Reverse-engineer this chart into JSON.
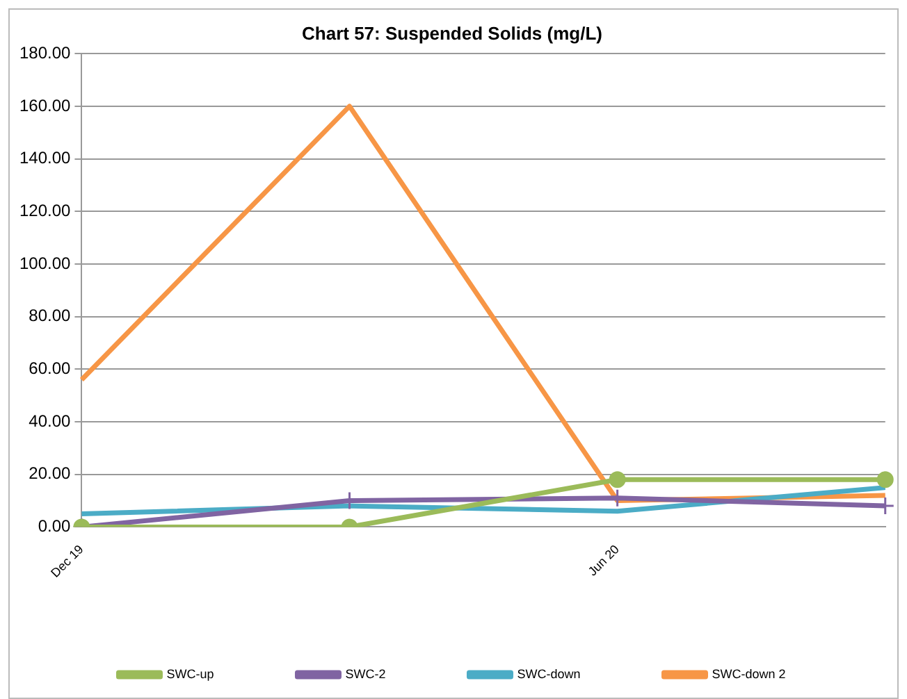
{
  "chart_data": {
    "type": "line",
    "title": "Chart 57: Suspended Solids (mg/L)",
    "categories": [
      "Dec 19",
      null,
      "Jun 20",
      null
    ],
    "series": [
      {
        "name": "SWC-up",
        "color": "#9bbb59",
        "values": [
          0,
          0,
          18,
          18
        ],
        "marker": "circle"
      },
      {
        "name": "SWC-2",
        "color": "#8064a2",
        "values": [
          0,
          10,
          11,
          8
        ],
        "marker": "cross"
      },
      {
        "name": "SWC-down",
        "color": "#4bacc6",
        "values": [
          5,
          8,
          6,
          15
        ],
        "marker": "none"
      },
      {
        "name": "SWC-down 2",
        "color": "#f79646",
        "values": [
          56,
          160,
          10,
          12
        ],
        "marker": "none"
      }
    ],
    "ylim": [
      0,
      180
    ],
    "yticks": [
      {
        "value": 0,
        "label": "0.00"
      },
      {
        "value": 20,
        "label": "20.00"
      },
      {
        "value": 40,
        "label": "40.00"
      },
      {
        "value": 60,
        "label": "60.00"
      },
      {
        "value": 80,
        "label": "80.00"
      },
      {
        "value": 100,
        "label": "100.00"
      },
      {
        "value": 120,
        "label": "120.00"
      },
      {
        "value": 140,
        "label": "140.00"
      },
      {
        "value": 160,
        "label": "160.00"
      },
      {
        "value": 180,
        "label": "180.00"
      }
    ],
    "grid": "y",
    "legend": "bottom",
    "line_style": "solid"
  }
}
